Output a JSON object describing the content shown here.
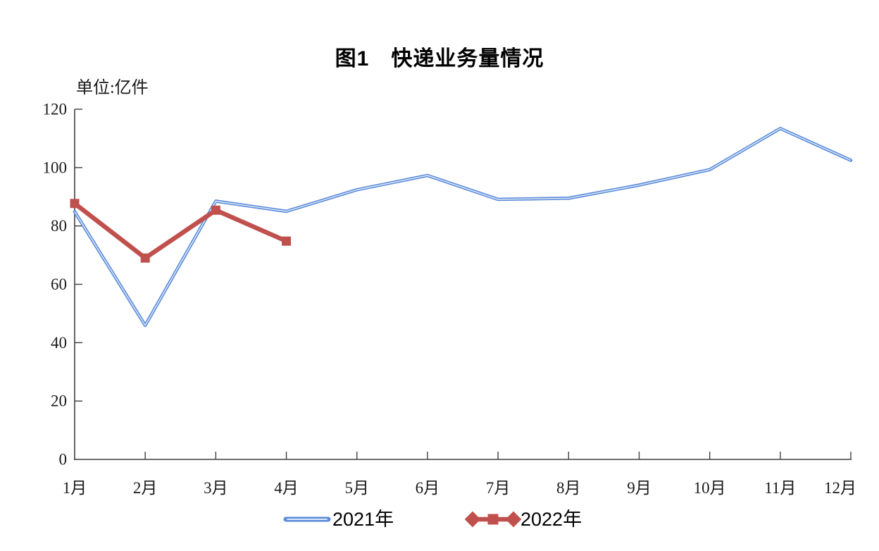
{
  "figure": {
    "title": "图1　快递业务量情况",
    "unit_label": "单位:亿件"
  },
  "colors": {
    "axis": "#3f3f3f",
    "tick_label": "#1a1a1a",
    "series_2021": "#5B8BD9",
    "series_2021_highlight": "#D9E6F8",
    "series_2022": "#C0504D"
  },
  "chart_data": {
    "type": "line",
    "title": "图1　快递业务量情况",
    "unit": "单位:亿件",
    "xlabel": "",
    "ylabel": "单位:亿件",
    "categories": [
      "1月",
      "2月",
      "3月",
      "4月",
      "5月",
      "6月",
      "7月",
      "8月",
      "9月",
      "10月",
      "11月",
      "12月"
    ],
    "series": [
      {
        "name": "2021年",
        "color": "#5B8BD9",
        "highlight": "#D9E6F8",
        "line_width": 4.6,
        "marker": "none",
        "values": [
          84.9,
          45.9,
          88.5,
          85.0,
          92.4,
          97.3,
          89.1,
          89.5,
          94.0,
          99.3,
          113.4,
          102.5
        ]
      },
      {
        "name": "2022年",
        "color": "#C0504D",
        "line_width": 6.5,
        "marker": "square",
        "marker_size": 13,
        "values": [
          87.7,
          69.0,
          85.4,
          74.8,
          null,
          null,
          null,
          null,
          null,
          null,
          null,
          null
        ]
      }
    ],
    "ylim": [
      0,
      120
    ],
    "ytick_step": 20,
    "yticks": [
      0,
      20,
      40,
      60,
      80,
      100,
      120
    ],
    "grid": false,
    "legend_position": "bottom"
  }
}
